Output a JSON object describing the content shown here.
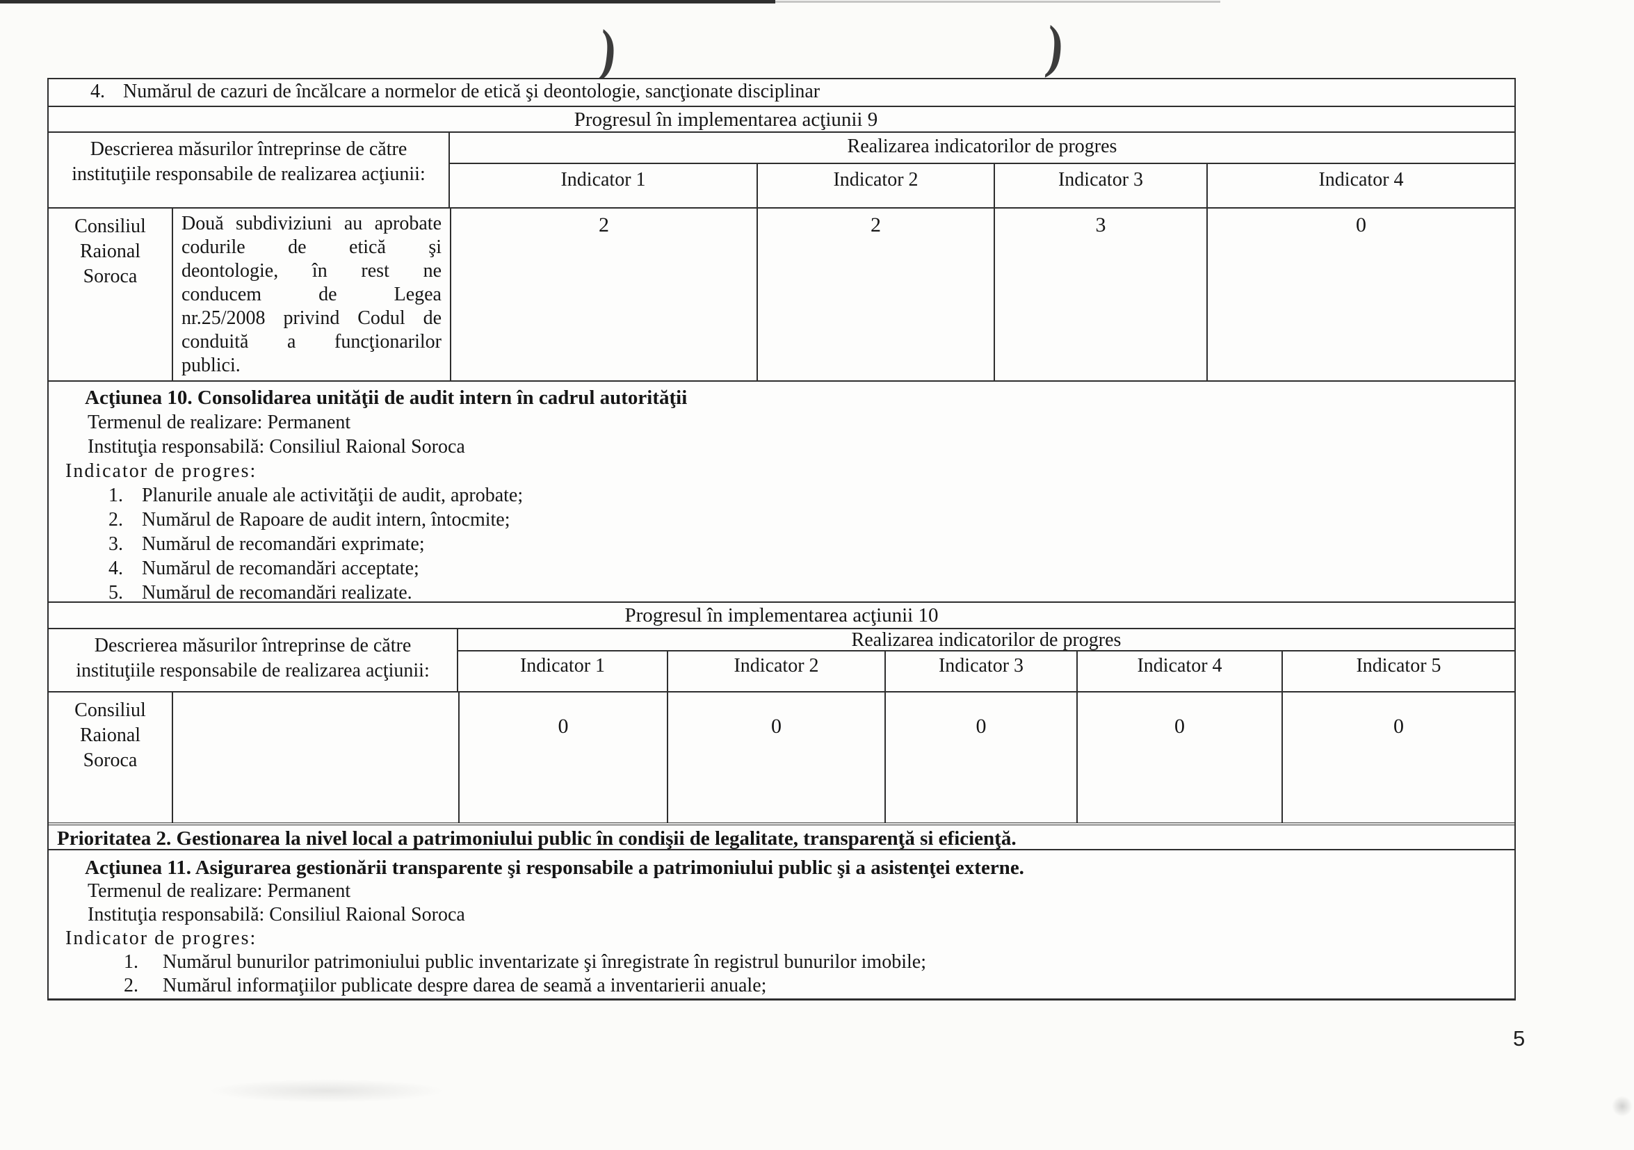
{
  "artifacts": {
    "paren": ")"
  },
  "page": {
    "number": "5"
  },
  "rowA": {
    "num": "4.",
    "text": "Numărul de cazuri de încălcare a normelor de etică şi deontologie, sancţionate disciplinar"
  },
  "t9": {
    "title": "Progresul în implementarea acţiunii 9",
    "col1": "Descrierea măsurilor întreprinse de către instituţiile responsabile de realizarea acţiunii:",
    "group": "Realizarea indicatorilor de progres",
    "ind": [
      "Indicator 1",
      "Indicator 2",
      "Indicator 3",
      "Indicator 4"
    ],
    "row": {
      "institution": "Consiliul Raional Soroca",
      "desc_lines": [
        "Două subdiviziuni au aprobate",
        "codurile de etică şi",
        "deontologie, în rest ne",
        "conducem de Legea",
        "nr.25/2008 privind Codul de",
        "conduită a funcţionarilor",
        "publici."
      ],
      "values": [
        "2",
        "2",
        "3",
        "0"
      ]
    }
  },
  "a10": {
    "title": "Acţiunea 10. Consolidarea unităţii de audit intern în cadrul autorităţii",
    "term": "Termenul de realizare: Permanent",
    "institution": "Instituţia responsabilă: Consiliul Raional Soroca",
    "label": "Indicator de progres:",
    "items": [
      {
        "num": "1.",
        "text": "Planurile anuale ale activităţii de audit, aprobate;"
      },
      {
        "num": "2.",
        "text": "Numărul de Rapoare de audit intern, întocmite;"
      },
      {
        "num": "3.",
        "text": "Numărul de recomandări exprimate;"
      },
      {
        "num": "4.",
        "text": "Numărul de recomandări acceptate;"
      },
      {
        "num": "5.",
        "text": "Numărul de recomandări realizate."
      }
    ]
  },
  "t10": {
    "title": "Progresul în implementarea acţiunii 10",
    "col1": "Descrierea măsurilor întreprinse de către instituţiile responsabile de realizarea acţiunii:",
    "group": "Realizarea indicatorilor de progres",
    "ind": [
      "Indicator 1",
      "Indicator 2",
      "Indicator 3",
      "Indicator 4",
      "Indicator 5"
    ],
    "row": {
      "institution": "Consiliul Raional Soroca",
      "description": "",
      "values": [
        "0",
        "0",
        "0",
        "0",
        "0"
      ]
    }
  },
  "p2": {
    "title": "Prioritatea 2. Gestionarea la nivel local a patrimoniului public în condişii de legalitate, transparenţă si eficienţă."
  },
  "a11": {
    "title": "Acţiunea 11. Asigurarea gestionării transparente şi responsabile a patrimoniului public şi a asistenţei externe.",
    "term": "Termenul de realizare: Permanent",
    "institution": "Instituţia responsabilă: Consiliul Raional Soroca",
    "label": "Indicator de progres:",
    "items": [
      {
        "num": "1.",
        "text": "Numărul bunurilor patrimoniului public inventarizate şi înregistrate în registrul bunurilor imobile;"
      },
      {
        "num": "2.",
        "text": "Numărul informaţiilor publicate despre darea de seamă a inventarierii anuale;"
      }
    ]
  }
}
